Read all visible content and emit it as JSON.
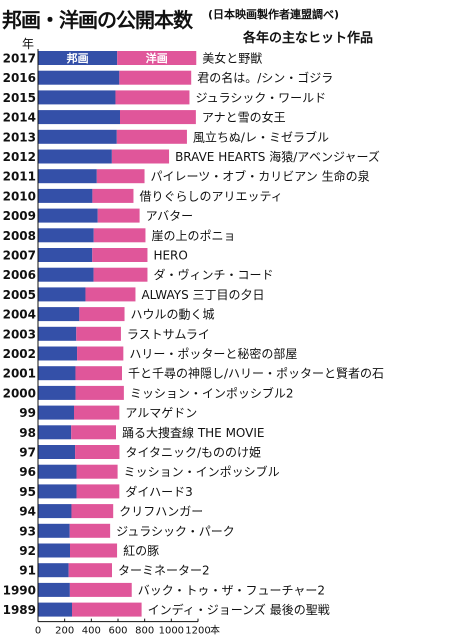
{
  "header": {
    "title": "邦画・洋画の公開本数",
    "source": "(日本映画製作者連盟調べ)",
    "subtitle": "各年の主なヒット作品",
    "year_unit": "年"
  },
  "colors": {
    "domestic": "#3450a8",
    "foreign": "#e0569a"
  },
  "chart_data": {
    "type": "bar",
    "orientation": "horizontal",
    "stacked": true,
    "categories": [
      "2017",
      "2016",
      "2015",
      "2014",
      "2013",
      "2012",
      "2011",
      "2010",
      "2009",
      "2008",
      "2007",
      "2006",
      "2005",
      "2004",
      "2003",
      "2002",
      "2001",
      "2000",
      "99",
      "98",
      "97",
      "96",
      "95",
      "94",
      "93",
      "92",
      "91",
      "1990",
      "1989"
    ],
    "series": [
      {
        "name": "邦画",
        "values": [
          594,
          610,
          581,
          615,
          591,
          554,
          441,
          408,
          448,
          418,
          407,
          417,
          356,
          310,
          287,
          293,
          281,
          282,
          270,
          249,
          278,
          289,
          289,
          251,
          238,
          240,
          230,
          239,
          255
        ]
      },
      {
        "name": "洋画",
        "values": [
          593,
          539,
          555,
          569,
          526,
          429,
          358,
          308,
          314,
          388,
          414,
          404,
          375,
          339,
          335,
          347,
          349,
          362,
          340,
          336,
          333,
          308,
          321,
          313,
          303,
          353,
          325,
          464,
          522
        ]
      }
    ],
    "annotations": [
      "美女と野獣",
      "君の名は。/シン・ゴジラ",
      "ジュラシック・ワールド",
      "アナと雪の女王",
      "風立ちぬ/レ・ミゼラブル",
      "BRAVE HEARTS 海猿/アベンジャーズ",
      "パイレーツ・オブ・カリビアン 生命の泉",
      "借りぐらしのアリエッティ",
      "アバター",
      "崖の上のポニョ",
      "HERO",
      "ダ・ヴィンチ・コード",
      "ALWAYS 三丁目の夕日",
      "ハウルの動く城",
      "ラストサムライ",
      "ハリー・ポッターと秘密の部屋",
      "千と千尋の神隠し/ハリー・ポッターと賢者の石",
      "ミッション・インポッシブル2",
      "アルマゲドン",
      "踊る大捜査線 THE MOVIE",
      "タイタニック/もののけ姫",
      "ミッション・インポッシブル",
      "ダイハード3",
      "クリフハンガー",
      "ジュラシック・パーク",
      "紅の豚",
      "ターミネーター2",
      "バック・トゥ・ザ・フューチャー2",
      "インディ・ジョーンズ 最後の聖戦"
    ],
    "x_ticks": [
      "0",
      "200",
      "400",
      "600",
      "800",
      "1000",
      "1200"
    ],
    "x_unit": "本",
    "xlim": [
      0,
      1200
    ]
  }
}
